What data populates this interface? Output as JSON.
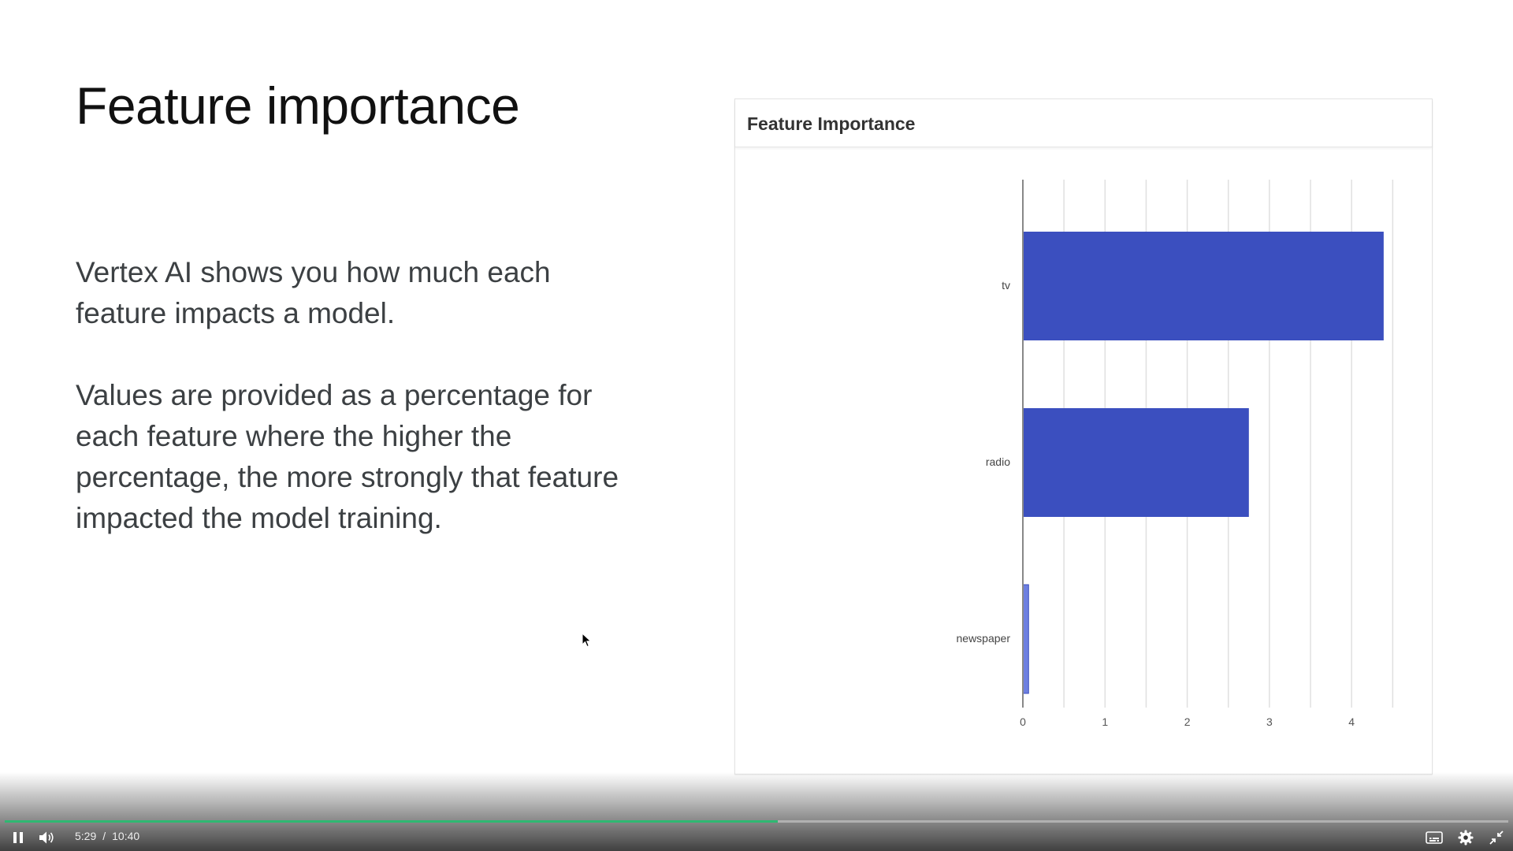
{
  "slide": {
    "title": "Feature importance",
    "paragraph1": "Vertex AI shows you how much each feature impacts a model.",
    "paragraph2": "Values are provided as a percentage for each feature where the higher the percentage, the more strongly that feature impacted the model training."
  },
  "chart_data": {
    "type": "bar",
    "orientation": "horizontal",
    "title": "Feature Importance",
    "categories": [
      "tv",
      "radio",
      "newspaper"
    ],
    "values": [
      4.39,
      2.75,
      0.07
    ],
    "xlim": [
      0,
      4.5
    ],
    "xticks": [
      0,
      1,
      2,
      3,
      4
    ],
    "grid": true,
    "bar_color": "#3b4fbf",
    "xlabel": "",
    "ylabel": ""
  },
  "player": {
    "current_time": "5:29",
    "separator": "/",
    "duration": "10:40",
    "progress": 0.514,
    "progress_color": "#2eb872",
    "icons": [
      "pause-icon",
      "volume-icon",
      "captions-icon",
      "settings-icon",
      "exit-fullscreen-icon"
    ]
  }
}
